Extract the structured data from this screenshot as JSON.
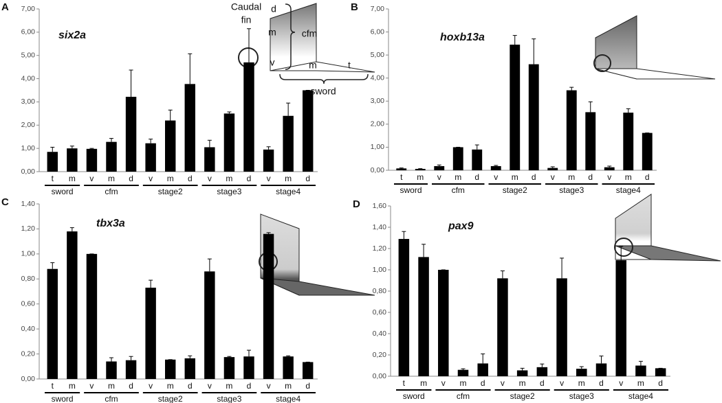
{
  "chart_data": [
    {
      "type": "bar",
      "label": "A",
      "title": "six2a",
      "color": "#000000",
      "ylim": [
        0,
        7
      ],
      "yticks": [
        {
          "value": 0,
          "label": "0,00"
        },
        {
          "value": 1,
          "label": "1,00"
        },
        {
          "value": 2,
          "label": "2,00"
        },
        {
          "value": 3,
          "label": "3,00"
        },
        {
          "value": 4,
          "label": "4,00"
        },
        {
          "value": 5,
          "label": "5,00"
        },
        {
          "value": 6,
          "label": "6,00"
        },
        {
          "value": 7,
          "label": "7,00"
        }
      ],
      "groups": [
        {
          "name": "sword",
          "categories": [
            "t",
            "m"
          ],
          "values": [
            0.85,
            1.0
          ],
          "errors": [
            0.2,
            0.1
          ]
        },
        {
          "name": "cfm",
          "categories": [
            "v",
            "m",
            "d"
          ],
          "values": [
            0.98,
            1.28,
            3.22
          ],
          "errors": [
            0.02,
            0.15,
            1.15
          ]
        },
        {
          "name": "stage2",
          "categories": [
            "v",
            "m",
            "d"
          ],
          "values": [
            1.22,
            2.2,
            3.77
          ],
          "errors": [
            0.18,
            0.45,
            1.3
          ]
        },
        {
          "name": "stage3",
          "categories": [
            "v",
            "m",
            "d"
          ],
          "values": [
            1.05,
            2.5,
            4.7
          ],
          "errors": [
            0.3,
            0.07,
            1.45
          ]
        },
        {
          "name": "stage4",
          "categories": [
            "v",
            "m",
            "d"
          ],
          "values": [
            0.95,
            2.4,
            3.5
          ],
          "errors": [
            0.12,
            0.55,
            0
          ]
        }
      ],
      "annotations": [
        "Caudal",
        "fin",
        "d",
        "m",
        "v",
        "cfm",
        "m",
        "t",
        "sword"
      ]
    },
    {
      "type": "bar",
      "label": "B",
      "title": "hoxb13a",
      "color": "#000000",
      "ylim": [
        0,
        7
      ],
      "yticks": [
        {
          "value": 0,
          "label": "0,00"
        },
        {
          "value": 1,
          "label": "1,00"
        },
        {
          "value": 2,
          "label": "2,00"
        },
        {
          "value": 3,
          "label": "3,00"
        },
        {
          "value": 4,
          "label": "4,00"
        },
        {
          "value": 5,
          "label": "5,00"
        },
        {
          "value": 6,
          "label": "6,00"
        },
        {
          "value": 7,
          "label": "7,00"
        }
      ],
      "groups": [
        {
          "name": "sword",
          "categories": [
            "t",
            "m"
          ],
          "values": [
            0.08,
            0.06
          ],
          "errors": [
            0.02,
            0.01
          ]
        },
        {
          "name": "cfm",
          "categories": [
            "v",
            "m",
            "d"
          ],
          "values": [
            0.18,
            1.0,
            0.9
          ],
          "errors": [
            0.05,
            0,
            0.2
          ]
        },
        {
          "name": "stage2",
          "categories": [
            "v",
            "m",
            "d"
          ],
          "values": [
            0.18,
            5.45,
            4.6
          ],
          "errors": [
            0.03,
            0.4,
            1.1
          ]
        },
        {
          "name": "stage3",
          "categories": [
            "v",
            "m",
            "d"
          ],
          "values": [
            0.1,
            3.47,
            2.52
          ],
          "errors": [
            0.05,
            0.13,
            0.45
          ]
        },
        {
          "name": "stage4",
          "categories": [
            "v",
            "m",
            "d"
          ],
          "values": [
            0.13,
            2.5,
            1.62
          ],
          "errors": [
            0.05,
            0.17,
            0
          ]
        }
      ]
    },
    {
      "type": "bar",
      "label": "C",
      "title": "tbx3a",
      "color": "#000000",
      "ylim": [
        0,
        1.4
      ],
      "yticks": [
        {
          "value": 0,
          "label": "0,00"
        },
        {
          "value": 0.2,
          "label": "0,20"
        },
        {
          "value": 0.4,
          "label": "0,40"
        },
        {
          "value": 0.6,
          "label": "0,60"
        },
        {
          "value": 0.8,
          "label": "0,80"
        },
        {
          "value": 1,
          "label": "1,00"
        },
        {
          "value": 1.2,
          "label": "1,20"
        },
        {
          "value": 1.4,
          "label": "1,40"
        }
      ],
      "groups": [
        {
          "name": "sword",
          "categories": [
            "t",
            "m"
          ],
          "values": [
            0.88,
            1.18
          ],
          "errors": [
            0.05,
            0.03
          ]
        },
        {
          "name": "cfm",
          "categories": [
            "v",
            "m",
            "d"
          ],
          "values": [
            1.0,
            0.14,
            0.15
          ],
          "errors": [
            0,
            0.03,
            0.03
          ]
        },
        {
          "name": "stage2",
          "categories": [
            "v",
            "m",
            "d"
          ],
          "values": [
            0.73,
            0.155,
            0.165
          ],
          "errors": [
            0.06,
            0,
            0.02
          ]
        },
        {
          "name": "stage3",
          "categories": [
            "v",
            "m",
            "d"
          ],
          "values": [
            0.86,
            0.175,
            0.18
          ],
          "errors": [
            0.1,
            0.005,
            0.05
          ]
        },
        {
          "name": "stage4",
          "categories": [
            "v",
            "m",
            "d"
          ],
          "values": [
            1.16,
            0.18,
            0.135
          ],
          "errors": [
            0.01,
            0.005,
            0
          ]
        }
      ]
    },
    {
      "type": "bar",
      "label": "D",
      "title": "pax9",
      "color": "#000000",
      "ylim": [
        0,
        1.6
      ],
      "yticks": [
        {
          "value": 0,
          "label": "0,00"
        },
        {
          "value": 0.2,
          "label": "0,20"
        },
        {
          "value": 0.4,
          "label": "0,40"
        },
        {
          "value": 0.6,
          "label": "0,60"
        },
        {
          "value": 0.8,
          "label": "0,80"
        },
        {
          "value": 1,
          "label": "1,00"
        },
        {
          "value": 1.2,
          "label": "1,20"
        },
        {
          "value": 1.4,
          "label": "1,40"
        },
        {
          "value": 1.6,
          "label": "1,60"
        }
      ],
      "groups": [
        {
          "name": "sword",
          "categories": [
            "t",
            "m"
          ],
          "values": [
            1.29,
            1.12
          ],
          "errors": [
            0.07,
            0.12
          ]
        },
        {
          "name": "cfm",
          "categories": [
            "v",
            "m",
            "d"
          ],
          "values": [
            1.0,
            0.06,
            0.12
          ],
          "errors": [
            0,
            0.01,
            0.09
          ]
        },
        {
          "name": "stage2",
          "categories": [
            "v",
            "m",
            "d"
          ],
          "values": [
            0.92,
            0.055,
            0.085
          ],
          "errors": [
            0.07,
            0.02,
            0.03
          ]
        },
        {
          "name": "stage3",
          "categories": [
            "v",
            "m",
            "d"
          ],
          "values": [
            0.92,
            0.07,
            0.12
          ],
          "errors": [
            0.19,
            0.02,
            0.07
          ]
        },
        {
          "name": "stage4",
          "categories": [
            "v",
            "m",
            "d"
          ],
          "values": [
            1.09,
            0.1,
            0.075
          ],
          "errors": [
            0.13,
            0.04,
            0
          ]
        }
      ]
    }
  ]
}
